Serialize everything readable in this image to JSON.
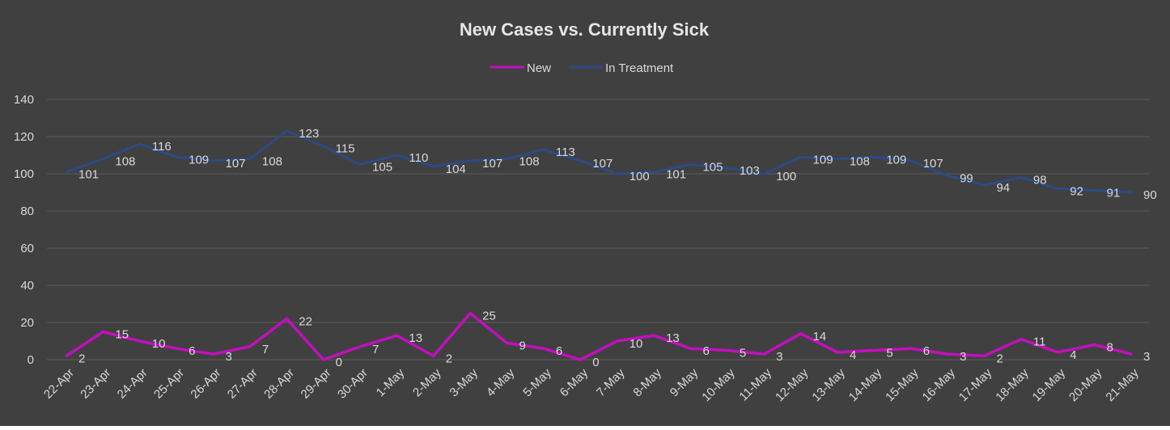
{
  "chart_data": {
    "type": "line",
    "title": "New Cases vs. Currently Sick",
    "xlabel": "",
    "ylabel": "",
    "ylim": [
      0,
      140
    ],
    "yticks": [
      "0",
      "20",
      "40",
      "60",
      "80",
      "100",
      "120",
      "140"
    ],
    "categories": [
      "22-Apr",
      "23-Apr",
      "24-Apr",
      "25-Apr",
      "26-Apr",
      "27-Apr",
      "28-Apr",
      "29-Apr",
      "30-Apr",
      "1-May",
      "2-May",
      "3-May",
      "4-May",
      "5-May",
      "6-May",
      "7-May",
      "8-May",
      "9-May",
      "10-May",
      "11-May",
      "12-May",
      "13-May",
      "14-May",
      "15-May",
      "16-May",
      "17-May",
      "18-May",
      "19-May",
      "20-May",
      "21-May"
    ],
    "series": [
      {
        "name": "New",
        "color": "#c40fbf",
        "values": [
          2,
          15,
          10,
          6,
          3,
          7,
          22,
          0,
          7,
          13,
          2,
          25,
          9,
          6,
          0,
          10,
          13,
          6,
          5,
          3,
          14,
          4,
          5,
          6,
          3,
          2,
          11,
          4,
          8,
          3
        ]
      },
      {
        "name": "In Treatment",
        "color": "#2c4a86",
        "values": [
          101,
          108,
          116,
          109,
          107,
          108,
          123,
          115,
          105,
          110,
          104,
          107,
          108,
          113,
          107,
          100,
          101,
          105,
          103,
          100,
          109,
          108,
          109,
          107,
          99,
          94,
          98,
          92,
          91,
          90
        ]
      }
    ],
    "legend_position": "top",
    "grid": true,
    "colors": {
      "background": "#404040",
      "gridline": "#5c5c5c",
      "text": "#d9d9d9",
      "title": "#e6e6e6"
    }
  }
}
